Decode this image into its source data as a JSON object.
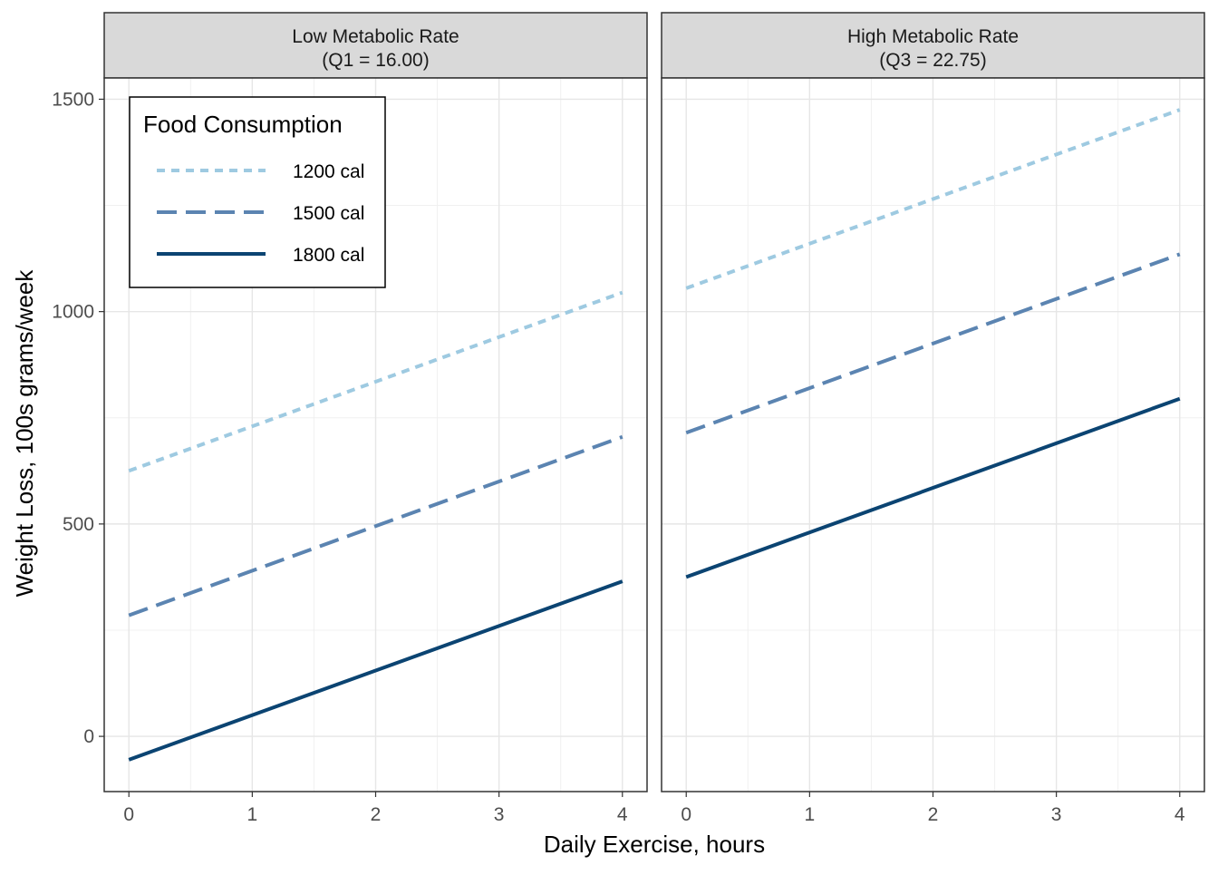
{
  "chart_data": {
    "type": "line",
    "xlabel": "Daily Exercise, hours",
    "ylabel": "Weight Loss, 100s grams/week",
    "xlim": [
      -0.2,
      4.2
    ],
    "ylim": [
      -130,
      1550
    ],
    "x_ticks": [
      0,
      1,
      2,
      3,
      4
    ],
    "y_ticks": [
      0,
      500,
      1000,
      1500
    ],
    "grid": true,
    "legend": {
      "title": "Food Consumption",
      "placement": "top-left",
      "entries": [
        {
          "label": "1200 cal",
          "style": "dotted",
          "color": "#9ecae1"
        },
        {
          "label": "1500 cal",
          "style": "dashed",
          "color": "#5b84b1"
        },
        {
          "label": "1800 cal",
          "style": "solid",
          "color": "#0b4472"
        }
      ]
    },
    "panels": [
      {
        "strip_line1": "Low Metabolic Rate",
        "strip_line2": "(Q1 = 16.00)",
        "series": [
          {
            "name": "1200 cal",
            "x": [
              0,
              4
            ],
            "y": [
              625,
              1045
            ]
          },
          {
            "name": "1500 cal",
            "x": [
              0,
              4
            ],
            "y": [
              285,
              705
            ]
          },
          {
            "name": "1800 cal",
            "x": [
              0,
              4
            ],
            "y": [
              -55,
              365
            ]
          }
        ]
      },
      {
        "strip_line1": "High Metabolic Rate",
        "strip_line2": "(Q3 = 22.75)",
        "series": [
          {
            "name": "1200 cal",
            "x": [
              0,
              4
            ],
            "y": [
              1055,
              1475
            ]
          },
          {
            "name": "1500 cal",
            "x": [
              0,
              4
            ],
            "y": [
              715,
              1135
            ]
          },
          {
            "name": "1800 cal",
            "x": [
              0,
              4
            ],
            "y": [
              375,
              795
            ]
          }
        ]
      }
    ]
  }
}
